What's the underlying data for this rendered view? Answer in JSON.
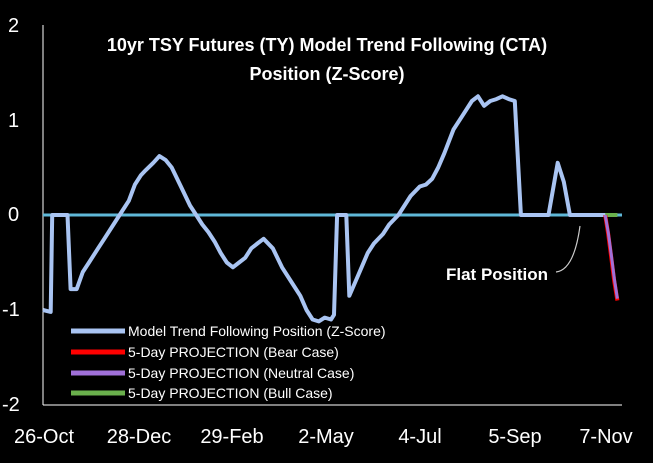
{
  "chart_data": {
    "type": "line",
    "title_lines": [
      "10yr TSY Futures (TY) Model Trend Following (CTA)",
      "Position (Z-Score)"
    ],
    "ylim": [
      -2,
      2
    ],
    "yticks": [
      "2",
      "1",
      "0",
      "-1",
      "-2"
    ],
    "ytick_values": [
      2,
      1,
      0,
      -1,
      -2
    ],
    "xtick_labels": [
      "26-Oct",
      "28-Dec",
      "29-Feb",
      "2-May",
      "4-Jul",
      "5-Sep",
      "7-Nov"
    ],
    "xlim": [
      0,
      378
    ],
    "xtick_days": [
      0,
      63,
      126,
      189,
      252,
      315,
      378
    ],
    "legend_position": "bottom-left",
    "series": [
      {
        "name": "Model Trend Following Position (Z-Score)",
        "color": "#a9c4f2",
        "x": [
          0,
          5,
          6,
          8,
          10,
          16,
          18,
          22,
          26,
          30,
          36,
          40,
          46,
          50,
          56,
          60,
          64,
          67,
          72,
          76,
          80,
          84,
          90,
          96,
          100,
          104,
          108,
          112,
          116,
          120,
          124,
          128,
          132,
          136,
          140,
          144,
          150,
          156,
          162,
          168,
          172,
          176,
          180,
          184,
          188,
          190,
          192,
          196,
          198,
          200,
          204,
          208,
          212,
          216,
          222,
          226,
          232,
          236,
          240,
          246,
          250,
          254,
          258,
          262,
          268,
          274,
          280,
          284,
          288,
          292,
          296,
          300,
          304,
          308,
          312,
          318,
          322,
          326,
          330,
          336,
          340,
          344,
          350,
          352,
          356,
          358,
          360,
          362,
          366,
          368,
          370,
          372,
          374
        ],
        "y": [
          -1.0,
          -1.02,
          0.0,
          0.0,
          0.0,
          0.0,
          -0.78,
          -0.78,
          -0.6,
          -0.5,
          -0.35,
          -0.25,
          -0.1,
          0.0,
          0.15,
          0.32,
          0.42,
          0.47,
          0.55,
          0.62,
          0.58,
          0.5,
          0.3,
          0.1,
          0.0,
          -0.1,
          -0.18,
          -0.28,
          -0.4,
          -0.5,
          -0.55,
          -0.5,
          -0.45,
          -0.35,
          -0.3,
          -0.25,
          -0.35,
          -0.55,
          -0.7,
          -0.85,
          -1.0,
          -1.1,
          -1.12,
          -1.08,
          -1.1,
          -1.05,
          0.0,
          0.0,
          0.0,
          -0.85,
          -0.7,
          -0.55,
          -0.4,
          -0.3,
          -0.2,
          -0.1,
          0.0,
          0.1,
          0.2,
          0.3,
          0.32,
          0.38,
          0.5,
          0.65,
          0.9,
          1.05,
          1.2,
          1.25,
          1.15,
          1.2,
          1.22,
          1.25,
          1.22,
          1.2,
          0.0,
          0.0,
          0.0,
          0.0,
          0.0,
          0.55,
          0.35,
          0.0,
          0.0,
          0.0,
          0.0,
          0.0,
          0.0,
          0.0,
          0.0,
          0.0,
          0.0,
          0.0,
          0.0
        ]
      },
      {
        "name": "5-Day PROJECTION (Bear Case)",
        "color": "#ff0000",
        "x": [
          367,
          369,
          371,
          373,
          375
        ],
        "y": [
          0.0,
          -0.2,
          -0.45,
          -0.7,
          -0.9
        ]
      },
      {
        "name": "5-Day PROJECTION (Neutral Case)",
        "color": "#a070d8",
        "x": [
          367,
          369,
          371,
          373,
          375
        ],
        "y": [
          0.0,
          -0.18,
          -0.42,
          -0.67,
          -0.88
        ]
      },
      {
        "name": "5-Day PROJECTION (Bull Case)",
        "color": "#6ab04c",
        "x": [
          367,
          369,
          371,
          373,
          375
        ],
        "y": [
          0.0,
          0.0,
          0.0,
          0.0,
          0.0
        ]
      }
    ],
    "zero_line_color": "#5fb8d8",
    "annotation": "Flat Position"
  }
}
